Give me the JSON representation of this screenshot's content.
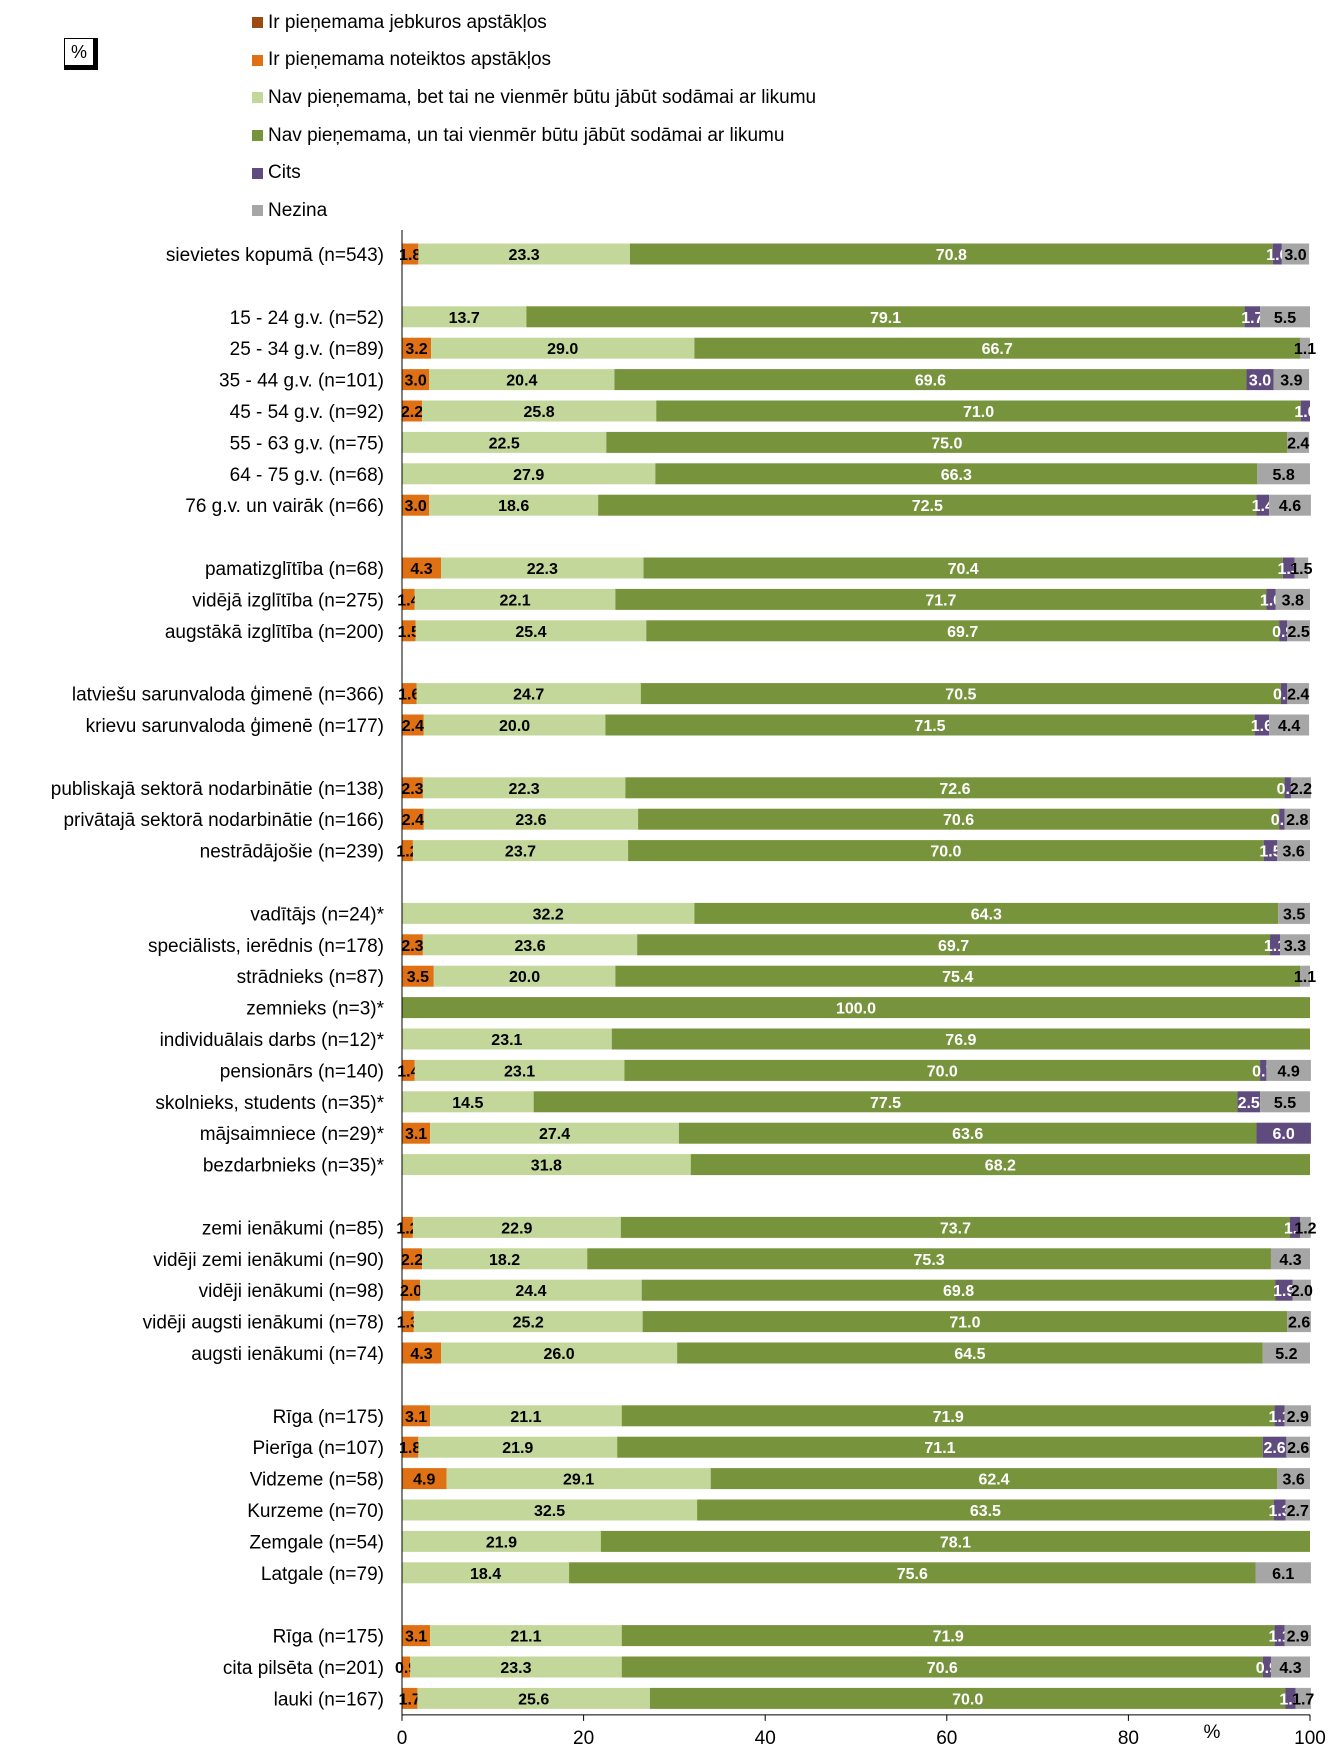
{
  "unit_box": "%",
  "chart_data": {
    "type": "bar",
    "orientation": "horizontal",
    "stacked": true,
    "xlabel": "%",
    "xlim": [
      0,
      100
    ],
    "xticks": [
      "0",
      "20",
      "40",
      "60",
      "80",
      "100"
    ],
    "legend_position": "top",
    "series": [
      {
        "name": "Ir pieņemama jebkuros apstākļos",
        "color": "#9C4A12"
      },
      {
        "name": "Ir pieņemama noteiktos apstākļos",
        "color": "#E07014"
      },
      {
        "name": "Nav pieņemama, bet tai ne vienmēr būtu jābūt sodāmai ar likumu",
        "color": "#C4D79B"
      },
      {
        "name": "Nav pieņemama, un tai vienmēr būtu jābūt sodāmai ar likumu",
        "color": "#77933C"
      },
      {
        "name": "Cits",
        "color": "#5F4B7E"
      },
      {
        "name": "Nezina",
        "color": "#A6A6A6"
      }
    ],
    "groups": [
      {
        "rows": [
          {
            "label": "sievietes kopumā (n=543)",
            "values": [
              0,
              1.8,
              23.3,
              70.8,
              1.0,
              3.0
            ]
          }
        ]
      },
      {
        "rows": [
          {
            "label": "15 - 24 g.v. (n=52)",
            "values": [
              0,
              0,
              13.7,
              79.1,
              1.7,
              5.5
            ]
          },
          {
            "label": "25 - 34 g.v. (n=89)",
            "values": [
              0,
              3.2,
              29.0,
              66.7,
              0,
              1.1
            ]
          },
          {
            "label": "35 - 44 g.v. (n=101)",
            "values": [
              0,
              3.0,
              20.4,
              69.6,
              3.0,
              3.9
            ]
          },
          {
            "label": "45 - 54 g.v. (n=92)",
            "values": [
              0,
              2.2,
              25.8,
              71.0,
              1.0,
              0
            ]
          },
          {
            "label": "55 - 63 g.v. (n=75)",
            "values": [
              0,
              0,
              22.5,
              75.0,
              0,
              2.4
            ]
          },
          {
            "label": "64 - 75 g.v. (n=68)",
            "values": [
              0,
              0,
              27.9,
              66.3,
              0,
              5.8
            ]
          },
          {
            "label": "76 g.v. un vairāk (n=66)",
            "values": [
              0,
              3.0,
              18.6,
              72.5,
              1.4,
              4.6
            ]
          }
        ]
      },
      {
        "rows": [
          {
            "label": "pamatizglītība (n=68)",
            "values": [
              0,
              4.3,
              22.3,
              70.4,
              1.3,
              1.5
            ]
          },
          {
            "label": "vidējā izglītība (n=275)",
            "values": [
              0,
              1.4,
              22.1,
              71.7,
              1.0,
              3.8
            ]
          },
          {
            "label": "augstākā izglītība (n=200)",
            "values": [
              0,
              1.5,
              25.4,
              69.7,
              0.9,
              2.5
            ]
          }
        ]
      },
      {
        "rows": [
          {
            "label": "latviešu sarunvaloda ģimenē (n=366)",
            "values": [
              0,
              1.6,
              24.7,
              70.5,
              0.7,
              2.4
            ]
          },
          {
            "label": "krievu sarunvaloda ģimenē (n=177)",
            "values": [
              0,
              2.4,
              20.0,
              71.5,
              1.6,
              4.4
            ]
          }
        ]
      },
      {
        "rows": [
          {
            "label": "publiskajā sektorā nodarbinātie (n=138)",
            "values": [
              0,
              2.3,
              22.3,
              72.6,
              0.7,
              2.2
            ]
          },
          {
            "label": "privātajā sektorā nodarbinātie (n=166)",
            "values": [
              0,
              2.4,
              23.6,
              70.6,
              0.6,
              2.8
            ]
          },
          {
            "label": "nestrādājošie (n=239)",
            "values": [
              0,
              1.2,
              23.7,
              70.0,
              1.5,
              3.6
            ]
          }
        ]
      },
      {
        "rows": [
          {
            "label": "vadītājs (n=24)*",
            "values": [
              0,
              0,
              32.2,
              64.3,
              0,
              3.5
            ]
          },
          {
            "label": "speciālists, ierēdnis (n=178)",
            "values": [
              0,
              2.3,
              23.6,
              69.7,
              1.1,
              3.3
            ]
          },
          {
            "label": "strādnieks (n=87)",
            "values": [
              0,
              3.5,
              20.0,
              75.4,
              0,
              1.1
            ]
          },
          {
            "label": "zemnieks (n=3)*",
            "values": [
              0,
              0,
              0,
              100.0,
              0,
              0
            ]
          },
          {
            "label": "individuālais darbs (n=12)*",
            "values": [
              0,
              0,
              23.1,
              76.9,
              0,
              0
            ]
          },
          {
            "label": "pensionārs (n=140)",
            "values": [
              0,
              1.4,
              23.1,
              70.0,
              0.7,
              4.9
            ]
          },
          {
            "label": "skolnieks, students (n=35)*",
            "values": [
              0,
              0,
              14.5,
              77.5,
              2.5,
              5.5
            ]
          },
          {
            "label": "mājsaimniece (n=29)*",
            "values": [
              0,
              3.1,
              27.4,
              63.6,
              6.0,
              0
            ]
          },
          {
            "label": "bezdarbnieks (n=35)*",
            "values": [
              0,
              0,
              31.8,
              68.2,
              0,
              0
            ]
          }
        ]
      },
      {
        "rows": [
          {
            "label": "zemi ienākumi (n=85)",
            "values": [
              0,
              1.2,
              22.9,
              73.7,
              1.1,
              1.2
            ]
          },
          {
            "label": "vidēji zemi ienākumi (n=90)",
            "values": [
              0,
              2.2,
              18.2,
              75.3,
              0,
              4.3
            ]
          },
          {
            "label": "vidēji ienākumi (n=98)",
            "values": [
              0,
              2.0,
              24.4,
              69.8,
              1.9,
              2.0
            ]
          },
          {
            "label": "vidēji augsti ienākumi (n=78)",
            "values": [
              0,
              1.3,
              25.2,
              71.0,
              0,
              2.6
            ]
          },
          {
            "label": "augsti ienākumi (n=74)",
            "values": [
              0,
              4.3,
              26.0,
              64.5,
              0,
              5.2
            ]
          }
        ]
      },
      {
        "rows": [
          {
            "label": "Rīga (n=175)",
            "values": [
              0,
              3.1,
              21.1,
              71.9,
              1.1,
              2.9
            ]
          },
          {
            "label": "Pierīga (n=107)",
            "values": [
              0,
              1.8,
              21.9,
              71.1,
              2.6,
              2.6
            ]
          },
          {
            "label": "Vidzeme (n=58)",
            "values": [
              0,
              4.9,
              29.1,
              62.4,
              0,
              3.6
            ]
          },
          {
            "label": "Kurzeme (n=70)",
            "values": [
              0,
              0,
              32.5,
              63.5,
              1.3,
              2.7
            ]
          },
          {
            "label": "Zemgale (n=54)",
            "values": [
              0,
              0,
              21.9,
              78.1,
              0,
              0
            ]
          },
          {
            "label": "Latgale (n=79)",
            "values": [
              0,
              0,
              18.4,
              75.6,
              0,
              6.1
            ]
          }
        ]
      },
      {
        "rows": [
          {
            "label": "Rīga (n=175)",
            "values": [
              0,
              3.1,
              21.1,
              71.9,
              1.1,
              2.9
            ]
          },
          {
            "label": "cita pilsēta (n=201)",
            "values": [
              0,
              0.9,
              23.3,
              70.6,
              0.9,
              4.3
            ]
          },
          {
            "label": "lauki (n=167)",
            "values": [
              0,
              1.7,
              25.6,
              70.0,
              1.1,
              1.7
            ]
          }
        ]
      }
    ]
  }
}
